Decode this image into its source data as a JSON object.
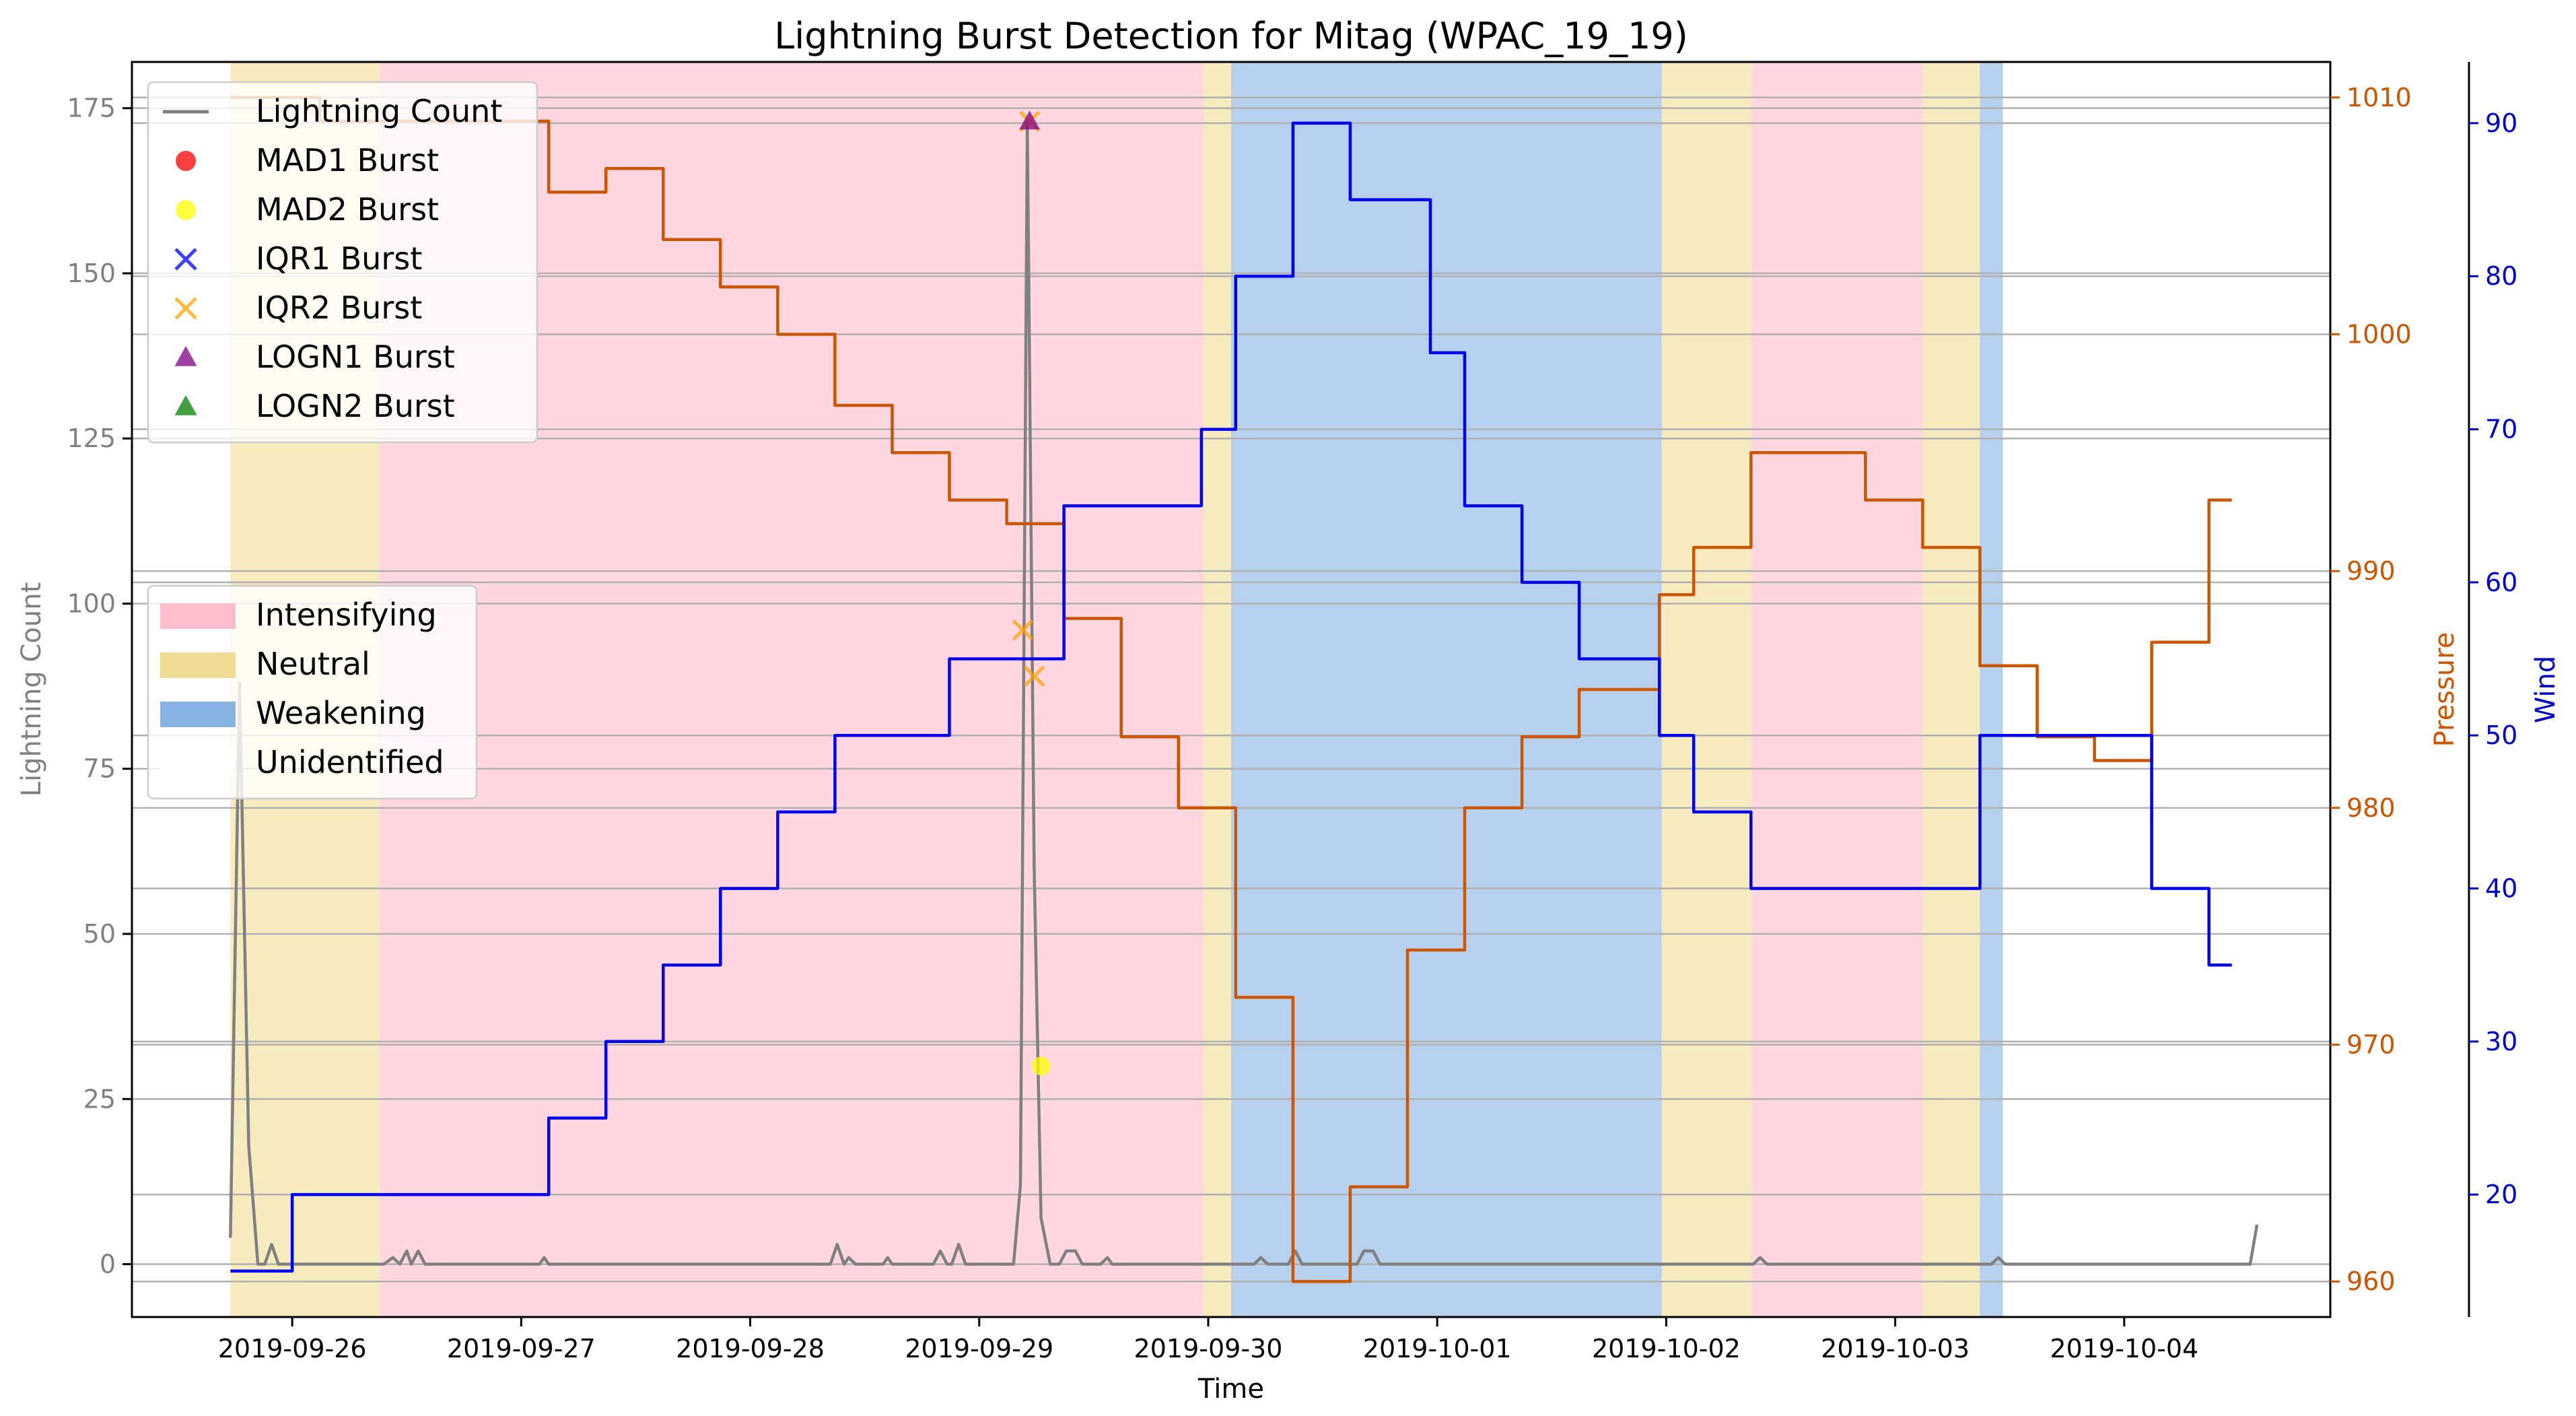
{
  "chart_data": {
    "type": "line",
    "title": "Lightning Burst Detection for Mitag (WPAC_19_19)",
    "xlabel": "Time",
    "x_ticks": [
      "2019-09-26",
      "2019-09-27",
      "2019-09-28",
      "2019-09-29",
      "2019-09-30",
      "2019-10-01",
      "2019-10-02",
      "2019-10-03",
      "2019-10-04"
    ],
    "xlim_days": [
      -0.7,
      8.9
    ],
    "axes": {
      "lightning": {
        "label": "Lightning Count",
        "ylim": [
          -8,
          182
        ],
        "ticks": [
          0,
          25,
          50,
          75,
          100,
          125,
          150,
          175
        ],
        "color": "#808080"
      },
      "pressure": {
        "label": "Pressure",
        "ylim": [
          958.5,
          1011.5
        ],
        "ticks": [
          960,
          970,
          980,
          990,
          1000,
          1010
        ],
        "color": "#cc5500"
      },
      "wind": {
        "label": "Wind",
        "ylim": [
          12,
          94
        ],
        "ticks": [
          20,
          30,
          40,
          50,
          60,
          70,
          80,
          90
        ],
        "color": "#0000cc"
      }
    },
    "grid": "horizontal",
    "phase_colors": {
      "Intensifying": "#ffb6c8",
      "Neutral": "#eed98a",
      "Weakening": "#7aaadf",
      "Unidentified": "#ffffff"
    },
    "phases": [
      {
        "phase": "Neutral",
        "start": -0.27,
        "end": 0.38
      },
      {
        "phase": "Intensifying",
        "start": 0.38,
        "end": 3.98
      },
      {
        "phase": "Neutral",
        "start": 3.98,
        "end": 4.1
      },
      {
        "phase": "Weakening",
        "start": 4.1,
        "end": 5.98
      },
      {
        "phase": "Neutral",
        "start": 5.98,
        "end": 6.37
      },
      {
        "phase": "Intensifying",
        "start": 6.37,
        "end": 7.12
      },
      {
        "phase": "Neutral",
        "start": 7.12,
        "end": 7.37
      },
      {
        "phase": "Weakening",
        "start": 7.37,
        "end": 7.47
      }
    ],
    "series": [
      {
        "name": "Lightning Count",
        "axis": "lightning",
        "color": "#808080",
        "points": [
          [
            -0.27,
            4
          ],
          [
            -0.23,
            88
          ],
          [
            -0.19,
            18
          ],
          [
            -0.15,
            0
          ],
          [
            -0.12,
            0
          ],
          [
            -0.09,
            3
          ],
          [
            -0.06,
            0
          ],
          [
            0.4,
            0
          ],
          [
            0.44,
            1
          ],
          [
            0.47,
            0
          ],
          [
            0.5,
            2
          ],
          [
            0.52,
            0
          ],
          [
            0.55,
            2
          ],
          [
            0.58,
            0
          ],
          [
            1.08,
            0
          ],
          [
            1.1,
            1
          ],
          [
            1.12,
            0
          ],
          [
            2.35,
            0
          ],
          [
            2.38,
            3
          ],
          [
            2.41,
            0
          ],
          [
            2.43,
            1
          ],
          [
            2.46,
            0
          ],
          [
            2.58,
            0
          ],
          [
            2.6,
            1
          ],
          [
            2.62,
            0
          ],
          [
            2.8,
            0
          ],
          [
            2.83,
            2
          ],
          [
            2.86,
            0
          ],
          [
            2.88,
            0
          ],
          [
            2.91,
            3
          ],
          [
            2.94,
            0
          ],
          [
            3.15,
            0
          ],
          [
            3.18,
            12
          ],
          [
            3.21,
            173
          ],
          [
            3.24,
            60
          ],
          [
            3.27,
            7
          ],
          [
            3.31,
            0
          ],
          [
            3.35,
            0
          ],
          [
            3.38,
            2
          ],
          [
            3.42,
            2
          ],
          [
            3.45,
            0
          ],
          [
            3.53,
            0
          ],
          [
            3.56,
            1
          ],
          [
            3.58,
            0
          ],
          [
            4.2,
            0
          ],
          [
            4.23,
            1
          ],
          [
            4.26,
            0
          ],
          [
            4.35,
            0
          ],
          [
            4.38,
            2
          ],
          [
            4.41,
            0
          ],
          [
            4.65,
            0
          ],
          [
            4.68,
            2
          ],
          [
            4.72,
            2
          ],
          [
            4.75,
            0
          ],
          [
            6.38,
            0
          ],
          [
            6.41,
            1
          ],
          [
            6.44,
            0
          ],
          [
            7.42,
            0
          ],
          [
            7.45,
            1
          ],
          [
            7.48,
            0
          ],
          [
            8.55,
            0
          ],
          [
            8.58,
            6
          ]
        ]
      },
      {
        "name": "Pressure",
        "axis": "pressure",
        "color": "#cc5500",
        "points": [
          [
            -0.27,
            1010
          ],
          [
            0.12,
            1010
          ],
          [
            0.12,
            1009
          ],
          [
            0.48,
            1009
          ],
          [
            0.48,
            1009
          ],
          [
            1.12,
            1009
          ],
          [
            1.12,
            1006
          ],
          [
            1.37,
            1006
          ],
          [
            1.37,
            1007
          ],
          [
            1.62,
            1007
          ],
          [
            1.62,
            1004
          ],
          [
            1.87,
            1004
          ],
          [
            1.87,
            1002
          ],
          [
            2.12,
            1002
          ],
          [
            2.12,
            1000
          ],
          [
            2.37,
            1000
          ],
          [
            2.37,
            997
          ],
          [
            2.62,
            997
          ],
          [
            2.62,
            995
          ],
          [
            2.87,
            995
          ],
          [
            2.87,
            993
          ],
          [
            3.12,
            993
          ],
          [
            3.12,
            992
          ],
          [
            3.37,
            992
          ],
          [
            3.37,
            988
          ],
          [
            3.62,
            988
          ],
          [
            3.62,
            983
          ],
          [
            3.87,
            983
          ],
          [
            3.87,
            980
          ],
          [
            4.12,
            980
          ],
          [
            4.12,
            972
          ],
          [
            4.37,
            972
          ],
          [
            4.37,
            960
          ],
          [
            4.62,
            960
          ],
          [
            4.62,
            964
          ],
          [
            4.87,
            964
          ],
          [
            4.87,
            974
          ],
          [
            5.12,
            974
          ],
          [
            5.12,
            980
          ],
          [
            5.37,
            980
          ],
          [
            5.37,
            983
          ],
          [
            5.62,
            983
          ],
          [
            5.62,
            985
          ],
          [
            5.97,
            985
          ],
          [
            5.97,
            989
          ],
          [
            6.12,
            989
          ],
          [
            6.12,
            991
          ],
          [
            6.37,
            991
          ],
          [
            6.37,
            995
          ],
          [
            6.87,
            995
          ],
          [
            6.87,
            993
          ],
          [
            7.12,
            993
          ],
          [
            7.12,
            991
          ],
          [
            7.37,
            991
          ],
          [
            7.37,
            986
          ],
          [
            7.62,
            986
          ],
          [
            7.62,
            983
          ],
          [
            7.87,
            983
          ],
          [
            7.87,
            982
          ],
          [
            8.12,
            982
          ],
          [
            8.12,
            987
          ],
          [
            8.37,
            987
          ],
          [
            8.37,
            993
          ],
          [
            8.47,
            993
          ]
        ]
      },
      {
        "name": "Wind",
        "axis": "wind",
        "color": "#0000ee",
        "points": [
          [
            -0.27,
            15
          ],
          [
            0.0,
            15
          ],
          [
            0.0,
            20
          ],
          [
            1.12,
            20
          ],
          [
            1.12,
            25
          ],
          [
            1.37,
            25
          ],
          [
            1.37,
            30
          ],
          [
            1.62,
            30
          ],
          [
            1.62,
            35
          ],
          [
            1.87,
            35
          ],
          [
            1.87,
            40
          ],
          [
            2.12,
            40
          ],
          [
            2.12,
            45
          ],
          [
            2.37,
            45
          ],
          [
            2.37,
            50
          ],
          [
            2.87,
            50
          ],
          [
            2.87,
            55
          ],
          [
            3.37,
            55
          ],
          [
            3.37,
            65
          ],
          [
            3.97,
            65
          ],
          [
            3.97,
            70
          ],
          [
            4.12,
            70
          ],
          [
            4.12,
            80
          ],
          [
            4.37,
            80
          ],
          [
            4.37,
            90
          ],
          [
            4.62,
            90
          ],
          [
            4.62,
            85
          ],
          [
            4.97,
            85
          ],
          [
            4.97,
            75
          ],
          [
            5.12,
            75
          ],
          [
            5.12,
            65
          ],
          [
            5.37,
            65
          ],
          [
            5.37,
            60
          ],
          [
            5.62,
            60
          ],
          [
            5.62,
            55
          ],
          [
            5.97,
            55
          ],
          [
            5.97,
            50
          ],
          [
            6.12,
            50
          ],
          [
            6.12,
            45
          ],
          [
            6.37,
            45
          ],
          [
            6.37,
            40
          ],
          [
            7.37,
            40
          ],
          [
            7.37,
            50
          ],
          [
            8.12,
            50
          ],
          [
            8.12,
            40
          ],
          [
            8.37,
            40
          ],
          [
            8.37,
            35
          ],
          [
            8.47,
            35
          ]
        ]
      }
    ],
    "bursts": [
      {
        "name": "MAD1 Burst",
        "marker": "circle",
        "color": "#ff0000",
        "points": []
      },
      {
        "name": "MAD2 Burst",
        "marker": "circle",
        "color": "#ffff00",
        "points": [
          [
            3.27,
            30
          ]
        ]
      },
      {
        "name": "IQR1 Burst",
        "marker": "x",
        "color": "#0000ff",
        "points": []
      },
      {
        "name": "IQR2 Burst",
        "marker": "x",
        "color": "#ffa500",
        "points": [
          [
            3.19,
            96
          ],
          [
            3.24,
            89
          ],
          [
            3.22,
            173
          ]
        ]
      },
      {
        "name": "LOGN1 Burst",
        "marker": "triangle",
        "color": "#800080",
        "points": [
          [
            3.22,
            173
          ]
        ]
      },
      {
        "name": "LOGN2 Burst",
        "marker": "triangle",
        "color": "#008000",
        "points": []
      }
    ],
    "legend1": {
      "placement": "upper-left",
      "entries": [
        "Lightning Count",
        "MAD1 Burst",
        "MAD2 Burst",
        "IQR1 Burst",
        "IQR2 Burst",
        "LOGN1 Burst",
        "LOGN2 Burst"
      ]
    },
    "legend2": {
      "placement": "center-left",
      "entries": [
        "Intensifying",
        "Neutral",
        "Weakening",
        "Unidentified"
      ]
    }
  }
}
